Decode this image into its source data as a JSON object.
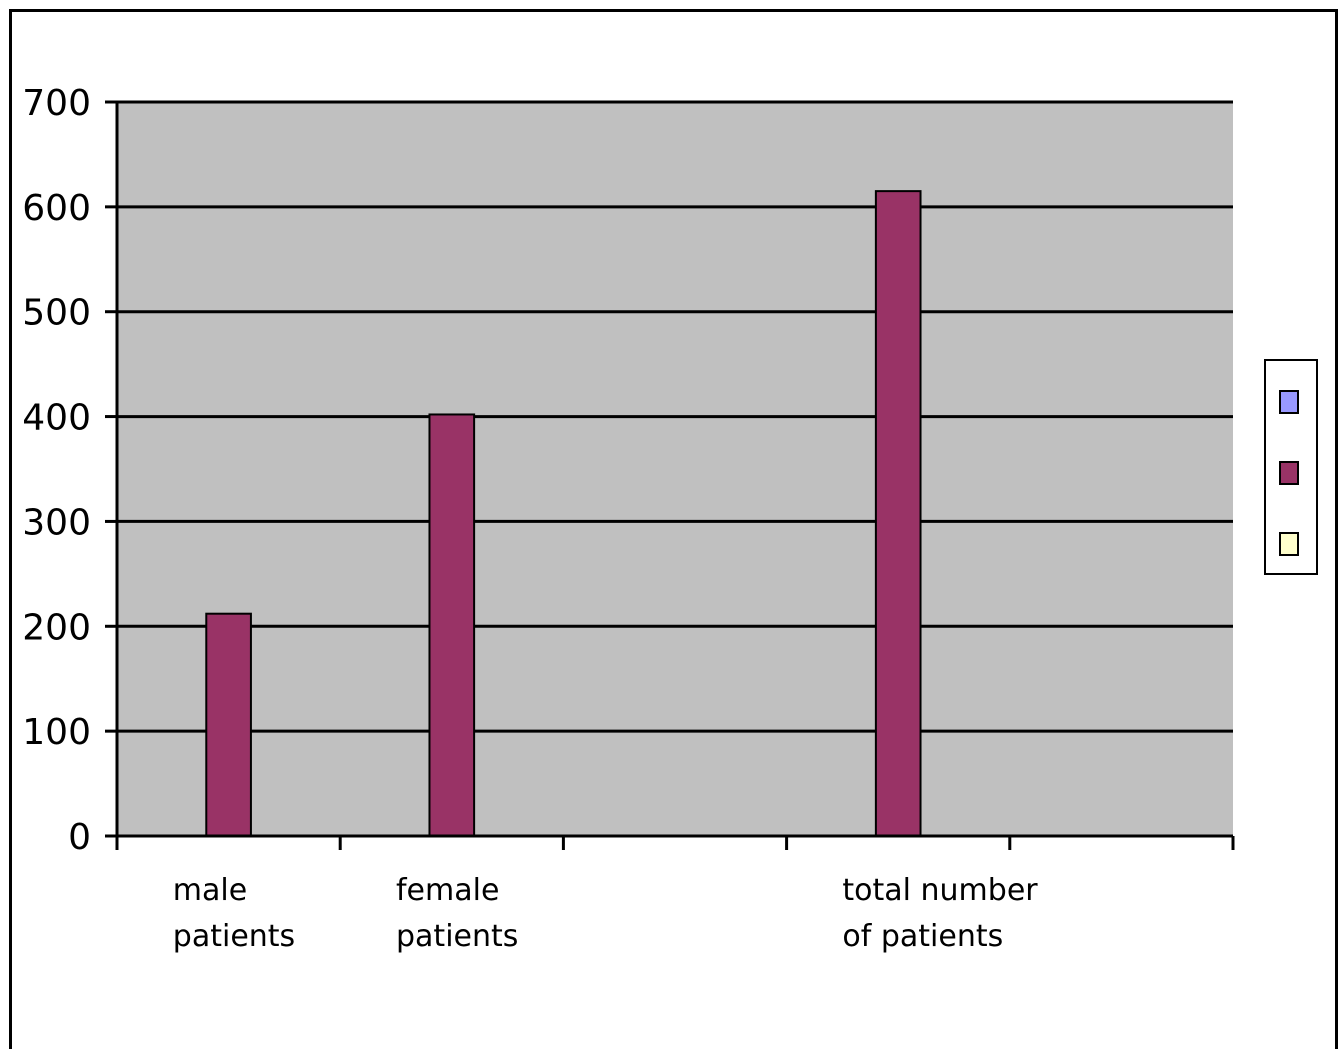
{
  "chart_data": {
    "type": "bar",
    "title": "",
    "xlabel": "",
    "ylabel": "",
    "ylim": [
      0,
      700
    ],
    "yticks": [
      0,
      100,
      200,
      300,
      400,
      500,
      600,
      700
    ],
    "grid": true,
    "legend_position": "right",
    "categories": [
      [
        "male",
        "patients"
      ],
      [
        "female",
        "patients"
      ],
      [],
      [
        "total number",
        "of patients"
      ],
      []
    ],
    "series": [
      {
        "color": "#9999ff",
        "values": [
          null,
          null,
          null,
          null,
          null
        ]
      },
      {
        "color": "#993366",
        "values": [
          212,
          402,
          null,
          615,
          null
        ]
      },
      {
        "color": "#ffffcc",
        "values": [
          null,
          null,
          null,
          null,
          null
        ]
      }
    ],
    "colors": {
      "plot_background": "#c0c0c0",
      "gridline": "#000000"
    }
  }
}
